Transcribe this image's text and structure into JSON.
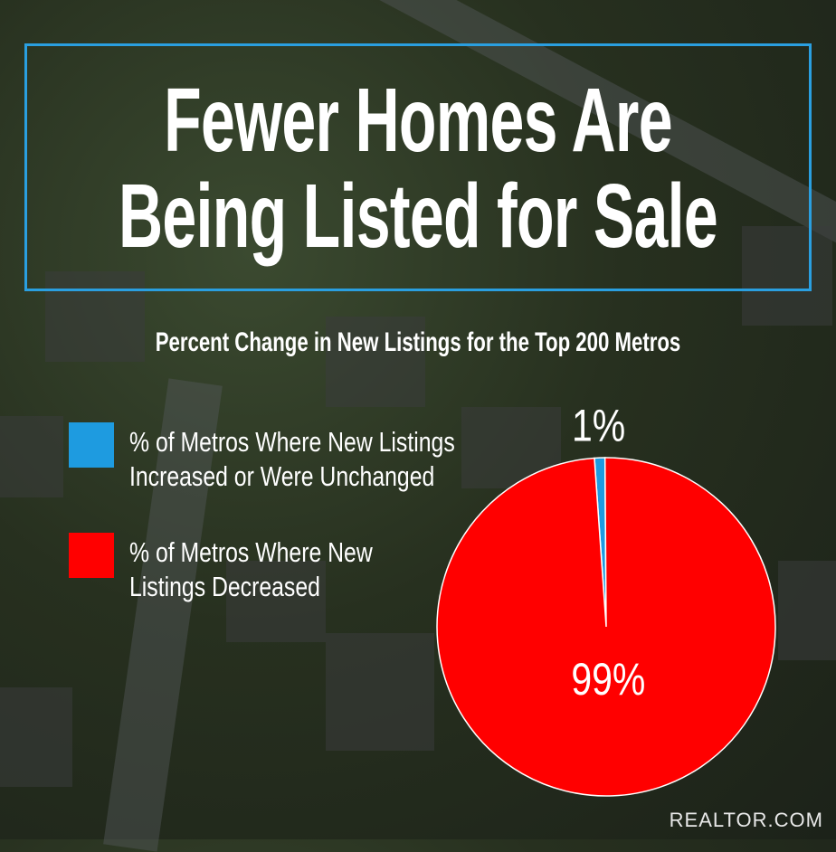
{
  "chart_data": {
    "type": "pie",
    "title": "Fewer Homes Are Being Listed for Sale",
    "subtitle": "Percent Change in New Listings for the Top 200 Metros",
    "categories": [
      "% of Metros Where New Listings Increased or Were Unchanged",
      "% of Metros Where New Listings Decreased"
    ],
    "values": [
      1,
      99
    ],
    "value_labels": [
      "1%",
      "99%"
    ],
    "colors": [
      "#1e9be0",
      "#ff0000"
    ],
    "source": "REALTOR.COM"
  }
}
